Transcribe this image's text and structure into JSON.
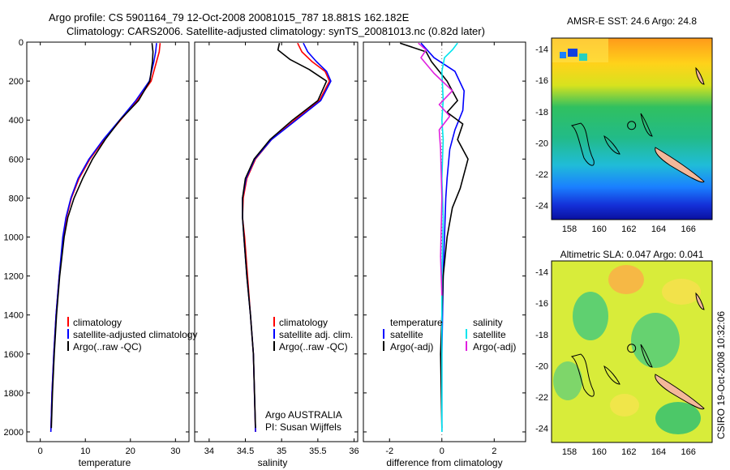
{
  "header": {
    "line1": "Argo profile: CS 5901164_79 12-Oct-2008 20081015_787 18.881S 162.182E",
    "line2": "Climatology: CARS2006. Satellite-adjusted climatology: synTS_20081013.nc (0.82d later)"
  },
  "colors": {
    "climatology": "#ff0000",
    "satellite": "#0000ff",
    "argo": "#000000",
    "sal_satellite": "#00e5ee",
    "sal_argo": "#e020e0",
    "coast_fill": "#f4b89a"
  },
  "chart_data": [
    {
      "type": "line",
      "id": "temperature",
      "xlabel": "temperature",
      "ylabel": "",
      "xlim": [
        -3,
        33
      ],
      "ylim": [
        2050,
        0
      ],
      "xticks": [
        0,
        10,
        20,
        30
      ],
      "yticks": [
        0,
        200,
        400,
        600,
        800,
        1000,
        1200,
        1400,
        1600,
        1800,
        2000
      ],
      "legend": [
        "climatology",
        "satellite-adjusted climatology",
        "Argo(..raw -QC)"
      ],
      "series": [
        {
          "name": "climatology",
          "color": "#ff0000",
          "width": 1.6,
          "x": [
            26.6,
            26.4,
            25.8,
            24.6,
            21.5,
            17.8,
            14.2,
            11.0,
            8.6,
            6.9,
            5.8,
            5.1,
            4.2,
            3.5,
            3.0,
            2.6,
            2.35
          ],
          "y": [
            5,
            50,
            100,
            200,
            300,
            400,
            500,
            600,
            700,
            800,
            900,
            1000,
            1200,
            1400,
            1600,
            1800,
            2000
          ]
        },
        {
          "name": "satellite-adjusted climatology",
          "color": "#0000ff",
          "width": 1.6,
          "x": [
            25.8,
            25.6,
            25.2,
            24.2,
            21.2,
            17.6,
            14.0,
            10.8,
            8.4,
            6.8,
            5.7,
            5.0,
            4.2,
            3.5,
            3.0,
            2.6,
            2.35
          ],
          "y": [
            5,
            50,
            100,
            200,
            300,
            400,
            500,
            600,
            700,
            800,
            900,
            1000,
            1200,
            1400,
            1600,
            1800,
            2000
          ]
        },
        {
          "name": "Argo(..raw -QC)",
          "color": "#000000",
          "width": 1.6,
          "x": [
            24.8,
            25.0,
            24.9,
            24.3,
            21.8,
            17.7,
            14.4,
            11.6,
            9.4,
            7.5,
            6.1,
            5.3,
            4.3,
            3.6,
            3.1,
            2.7,
            2.45
          ],
          "y": [
            5,
            50,
            100,
            200,
            300,
            400,
            500,
            600,
            700,
            800,
            900,
            1000,
            1200,
            1400,
            1600,
            1800,
            1980
          ]
        }
      ]
    },
    {
      "type": "line",
      "id": "salinity",
      "xlabel": "salinity",
      "ylabel": "",
      "xlim": [
        33.8,
        36.05
      ],
      "ylim": [
        2050,
        0
      ],
      "xticks": [
        34,
        34.5,
        35,
        35.5,
        36
      ],
      "yticks": [
        0,
        200,
        400,
        600,
        800,
        1000,
        1200,
        1400,
        1600,
        1800,
        2000
      ],
      "legend": [
        "climatology",
        "satellite adj. clim.",
        "Argo(..raw -QC)"
      ],
      "annotations": [
        "Argo AUSTRALIA",
        "PI: Susan Wijffels"
      ],
      "series": [
        {
          "name": "climatology",
          "color": "#ff0000",
          "width": 1.6,
          "x": [
            35.22,
            35.28,
            35.42,
            35.6,
            35.66,
            35.52,
            35.18,
            34.86,
            34.64,
            34.52,
            34.47,
            34.46,
            34.49,
            34.53,
            34.57,
            34.61,
            34.64
          ],
          "y": [
            5,
            50,
            100,
            150,
            200,
            300,
            400,
            500,
            600,
            700,
            800,
            900,
            1000,
            1200,
            1400,
            1600,
            2000
          ]
        },
        {
          "name": "satellite adj. clim.",
          "color": "#0000ff",
          "width": 1.6,
          "x": [
            35.3,
            35.36,
            35.48,
            35.62,
            35.68,
            35.54,
            35.2,
            34.86,
            34.63,
            34.51,
            34.46,
            34.46,
            34.48,
            34.52,
            34.57,
            34.61,
            34.64
          ],
          "y": [
            5,
            50,
            100,
            150,
            200,
            300,
            400,
            500,
            600,
            700,
            800,
            900,
            1000,
            1200,
            1400,
            1600,
            2000
          ]
        },
        {
          "name": "Argo(..raw -QC)",
          "color": "#000000",
          "width": 1.6,
          "x": [
            34.97,
            34.95,
            35.12,
            35.38,
            35.62,
            35.5,
            35.15,
            34.84,
            34.62,
            34.5,
            34.46,
            34.46,
            34.48,
            34.52,
            34.57,
            34.61,
            34.64
          ],
          "y": [
            5,
            40,
            90,
            140,
            200,
            300,
            400,
            500,
            600,
            700,
            800,
            900,
            1000,
            1200,
            1400,
            1600,
            1980
          ]
        }
      ]
    },
    {
      "type": "line",
      "id": "difference",
      "xlabel": "difference from climatology",
      "ylabel": "",
      "xlim": [
        -3,
        3.2
      ],
      "ylim": [
        2050,
        0
      ],
      "xticks": [
        -2,
        0,
        2
      ],
      "yticks": [
        0,
        200,
        400,
        600,
        800,
        1000,
        1200,
        1400,
        1600,
        1800,
        2000
      ],
      "legend_temperature_title": "temperature",
      "legend_temperature": [
        "satellite",
        "Argo(-adj)"
      ],
      "legend_salinity_title": "salinity",
      "legend_salinity": [
        "satellite",
        "Argo(-adj)"
      ],
      "series": [
        {
          "name": "temperature satellite",
          "color": "#0000ff",
          "width": 1.6,
          "x": [
            -0.8,
            -0.3,
            0.5,
            0.85,
            0.8,
            0.5,
            0.3,
            0.2,
            0.15,
            0.1,
            0.05,
            0.0,
            0.0
          ],
          "y": [
            5,
            80,
            150,
            250,
            350,
            450,
            550,
            700,
            800,
            1000,
            1200,
            1600,
            2000
          ]
        },
        {
          "name": "temperature Argo(-adj)",
          "color": "#000000",
          "width": 1.6,
          "x": [
            -1.6,
            -0.6,
            -0.4,
            0.2,
            0.6,
            0.2,
            0.8,
            0.6,
            1.0,
            0.7,
            0.4,
            0.2,
            0.05,
            -0.05,
            0.0
          ],
          "y": [
            5,
            50,
            100,
            200,
            300,
            360,
            420,
            500,
            600,
            750,
            850,
            1000,
            1200,
            1600,
            1980
          ]
        },
        {
          "name": "salinity satellite",
          "color": "#00e5ee",
          "width": 1.6,
          "x": [
            0.6,
            0.4,
            0.1,
            0.0,
            0.05,
            0.0,
            0.05,
            0.0,
            0.05,
            0.0,
            0.0,
            0.0
          ],
          "y": [
            5,
            40,
            80,
            150,
            300,
            400,
            500,
            700,
            900,
            1200,
            1600,
            2000
          ]
        },
        {
          "name": "salinity Argo(-adj)",
          "color": "#e020e0",
          "width": 1.6,
          "x": [
            -0.9,
            -0.6,
            -0.8,
            -0.3,
            0.4,
            -0.1,
            0.3,
            -0.1,
            -0.05,
            0.0,
            -0.05,
            0.0
          ],
          "y": [
            5,
            40,
            80,
            160,
            250,
            320,
            380,
            450,
            550,
            800,
            1100,
            1300
          ]
        }
      ]
    },
    {
      "type": "heatmap",
      "id": "sst_map",
      "title": "AMSR-E SST: 24.6 Argo: 24.8",
      "xticks": [
        158,
        160,
        162,
        164,
        166
      ],
      "yticks": [
        -14,
        -16,
        -18,
        -20,
        -22,
        -24
      ],
      "xlim": [
        156.8,
        167.6
      ],
      "ylim": [
        -24.9,
        -13.3
      ],
      "argo_position": [
        162.182,
        -18.881
      ]
    },
    {
      "type": "heatmap",
      "id": "sla_map",
      "title": "Altimetric SLA: 0.047 Argo: 0.041",
      "xticks": [
        158,
        160,
        162,
        164,
        166
      ],
      "yticks": [
        -14,
        -16,
        -18,
        -20,
        -22,
        -24
      ],
      "xlim": [
        156.8,
        167.6
      ],
      "ylim": [
        -24.9,
        -13.3
      ],
      "argo_position": [
        162.182,
        -18.881
      ]
    }
  ],
  "footer": {
    "credit": "CSIRO 19-Oct-2008 10:32:06"
  }
}
